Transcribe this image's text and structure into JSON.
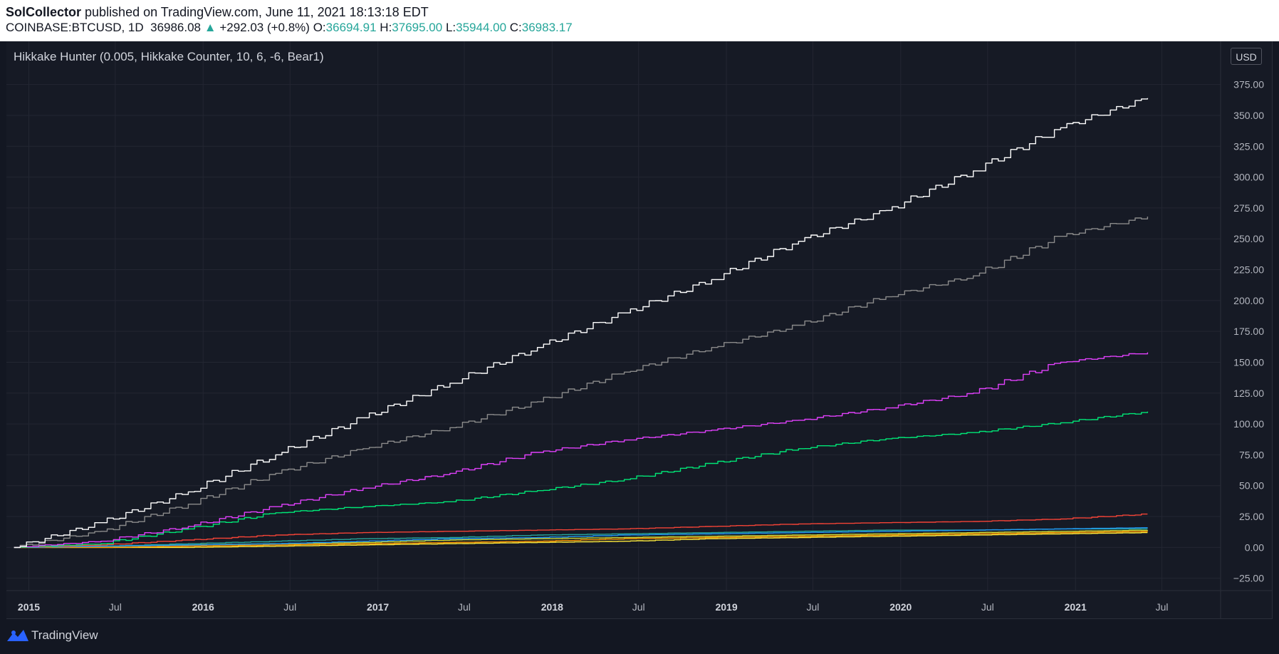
{
  "header": {
    "author": "SolCollector",
    "published_text": "published on TradingView.com, June 11, 2021 18:13:18 EDT",
    "symbol": "COINBASE:BTCUSD, 1D",
    "last_price": "36986.08",
    "change": "+292.03 (+0.8%)",
    "open_label": "O:",
    "open": "36694.91",
    "high_label": "H:",
    "high": "37695.00",
    "low_label": "L:",
    "low": "35944.00",
    "close_label": "C:",
    "close": "36983.17"
  },
  "indicator_title": "Hikkake Hunter (0.005, Hikkake Counter, 10, 6, -6, Bear1)",
  "currency": "USD",
  "footer": {
    "brand": "TradingView"
  },
  "colors": {
    "background": "#161a25",
    "grid": "#232632",
    "up": "#26a69a"
  },
  "chart_data": {
    "type": "line",
    "grid": true,
    "y_axis_side": "right",
    "ylim": [
      -35,
      410
    ],
    "xlim": [
      "2014-11-15",
      "2021-11-01"
    ],
    "y_ticks": [
      -25,
      0,
      25,
      50,
      75,
      100,
      125,
      150,
      175,
      200,
      225,
      250,
      275,
      300,
      325,
      350,
      375
    ],
    "y_tick_labels": [
      "−25.00",
      "0.00",
      "25.00",
      "50.00",
      "75.00",
      "100.00",
      "125.00",
      "150.00",
      "175.00",
      "200.00",
      "225.00",
      "250.00",
      "275.00",
      "300.00",
      "325.00",
      "350.00",
      "375.00"
    ],
    "x_ticks": [
      {
        "label": "2015",
        "date": "2015-01-01",
        "major": true
      },
      {
        "label": "Jul",
        "date": "2015-07-01",
        "major": false
      },
      {
        "label": "2016",
        "date": "2016-01-01",
        "major": true
      },
      {
        "label": "Jul",
        "date": "2016-07-01",
        "major": false
      },
      {
        "label": "2017",
        "date": "2017-01-01",
        "major": true
      },
      {
        "label": "Jul",
        "date": "2017-07-01",
        "major": false
      },
      {
        "label": "2018",
        "date": "2018-01-01",
        "major": true
      },
      {
        "label": "Jul",
        "date": "2018-07-01",
        "major": false
      },
      {
        "label": "2019",
        "date": "2019-01-01",
        "major": true
      },
      {
        "label": "Jul",
        "date": "2019-07-01",
        "major": false
      },
      {
        "label": "2020",
        "date": "2020-01-01",
        "major": true
      },
      {
        "label": "Jul",
        "date": "2020-07-01",
        "major": false
      },
      {
        "label": "2021",
        "date": "2021-01-01",
        "major": true
      },
      {
        "label": "Jul",
        "date": "2021-07-01",
        "major": false
      }
    ],
    "x": [
      "2014-12-01",
      "2015-06-01",
      "2015-12-01",
      "2016-06-01",
      "2016-12-01",
      "2017-06-01",
      "2017-12-01",
      "2018-06-01",
      "2018-12-01",
      "2019-06-01",
      "2019-12-01",
      "2020-06-01",
      "2020-12-01",
      "2021-06-01"
    ],
    "series": [
      {
        "color": "#ffffff",
        "values": [
          0,
          20,
          45,
          75,
          105,
          133,
          162,
          190,
          217,
          248,
          273,
          305,
          340,
          364
        ]
      },
      {
        "color": "#8a8a8a",
        "values": [
          0,
          13,
          35,
          60,
          80,
          97,
          118,
          142,
          162,
          180,
          203,
          220,
          252,
          268
        ]
      },
      {
        "color": "#e040fb",
        "values": [
          0,
          5,
          17,
          33,
          48,
          60,
          77,
          87,
          95,
          103,
          113,
          125,
          150,
          158
        ]
      },
      {
        "color": "#00e676",
        "values": [
          0,
          3,
          15,
          28,
          33,
          37,
          46,
          55,
          68,
          80,
          88,
          93,
          101,
          110
        ]
      },
      {
        "color": "#f44336",
        "values": [
          0,
          2,
          6,
          10,
          12,
          13,
          14,
          15,
          17,
          19,
          20,
          21,
          23,
          27
        ]
      },
      {
        "color": "#2196f3",
        "values": [
          0,
          1,
          2,
          3,
          5,
          7,
          8,
          10,
          11,
          12,
          13,
          14,
          15,
          16
        ]
      },
      {
        "color": "#26a69a",
        "values": [
          0,
          1,
          3,
          5,
          7,
          8,
          10,
          11,
          12,
          13,
          14,
          14,
          15,
          15
        ]
      },
      {
        "color": "#cddc39",
        "values": [
          0,
          1,
          2,
          3,
          4,
          6,
          7,
          8,
          9,
          10,
          11,
          12,
          13,
          14
        ]
      },
      {
        "color": "#ff9800",
        "values": [
          0,
          0,
          1,
          2,
          3,
          4,
          5,
          7,
          8,
          9,
          10,
          11,
          12,
          13
        ]
      },
      {
        "color": "#ffeb3b",
        "values": [
          0,
          0,
          0,
          1,
          2,
          3,
          4,
          5,
          7,
          8,
          9,
          10,
          11,
          12
        ]
      }
    ]
  }
}
